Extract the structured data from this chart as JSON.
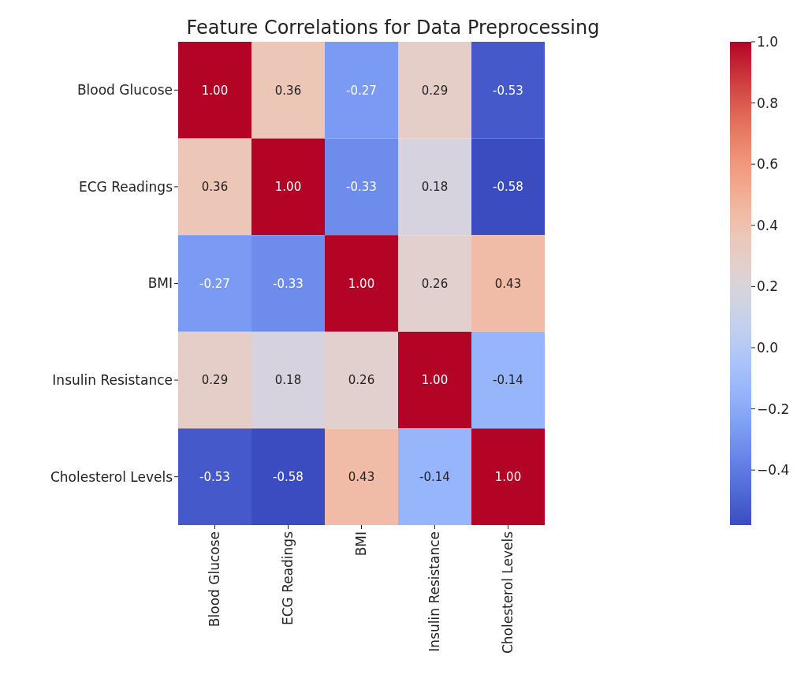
{
  "chart_data": {
    "type": "heatmap",
    "title": "Feature Correlations for Data Preprocessing",
    "categories": [
      "Blood Glucose",
      "ECG Readings",
      "BMI",
      "Insulin Resistance",
      "Cholesterol Levels"
    ],
    "y_categories": [
      "Blood Glucose",
      "ECG Readings",
      "BMI",
      "Insulin Resistance",
      "Cholesterol Levels"
    ],
    "cells": [
      [
        1.0,
        0.36,
        -0.27,
        0.29,
        -0.53
      ],
      [
        0.36,
        1.0,
        -0.33,
        0.18,
        -0.58
      ],
      [
        -0.27,
        -0.33,
        1.0,
        0.26,
        0.43
      ],
      [
        0.29,
        0.18,
        0.26,
        1.0,
        -0.14
      ],
      [
        -0.53,
        -0.58,
        0.43,
        -0.14,
        1.0
      ]
    ],
    "cell_labels": [
      [
        "1.00",
        "0.36",
        "-0.27",
        "0.29",
        "-0.53"
      ],
      [
        "0.36",
        "1.00",
        "-0.33",
        "0.18",
        "-0.58"
      ],
      [
        "-0.27",
        "-0.33",
        "1.00",
        "0.26",
        "0.43"
      ],
      [
        "0.29",
        "0.18",
        "0.26",
        "1.00",
        "-0.14"
      ],
      [
        "-0.53",
        "-0.58",
        "0.43",
        "-0.14",
        "1.00"
      ]
    ],
    "clim": [
      -0.58,
      1.0
    ],
    "cticks": [
      {
        "value": -0.4,
        "label": "−0.4"
      },
      {
        "value": -0.2,
        "label": "−0.2"
      },
      {
        "value": 0,
        "label": "0.0"
      },
      {
        "value": 0.2,
        "label": "0.2"
      },
      {
        "value": 0.4,
        "label": "0.4"
      },
      {
        "value": 0.6,
        "label": "0.6"
      },
      {
        "value": 0.8,
        "label": "0.8"
      },
      {
        "value": 1.0,
        "label": "1.0"
      }
    ]
  }
}
